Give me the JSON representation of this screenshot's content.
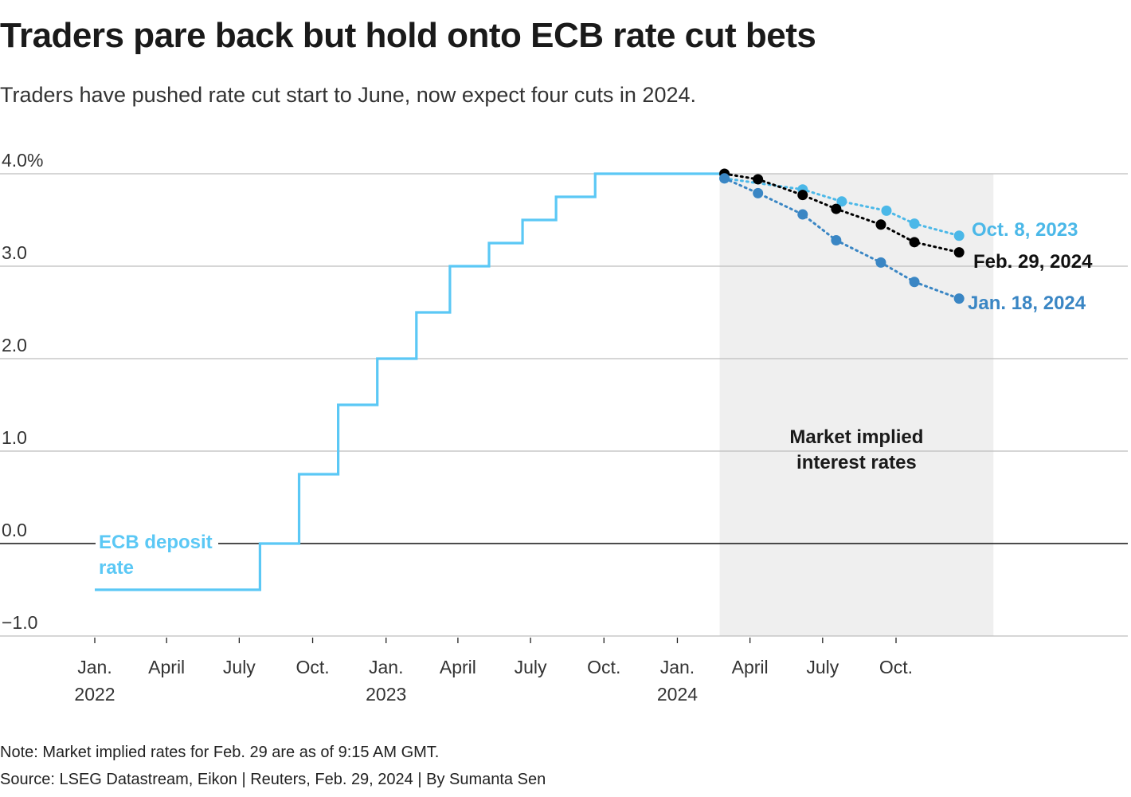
{
  "header": {
    "title": "Traders pare back but hold onto ECB rate cut bets",
    "subtitle": "Traders have pushed rate cut start to June, now expect four cuts in 2024."
  },
  "footer": {
    "note": "Note: Market implied rates for Feb. 29 are as of 9:15 AM GMT.",
    "source": "Source: LSEG Datastream, Eikon | Reuters, Feb. 29, 2024 | By Sumanta Sen"
  },
  "colors": {
    "deposit": "#5bc8f5",
    "oct8": "#4bb8e8",
    "feb29": "#000000",
    "jan18": "#3a86c4",
    "shade": "#efefef",
    "grid": "#bdbdbd",
    "zero": "#111111"
  },
  "chart_data": {
    "type": "line",
    "y_unit": "%",
    "ylim": [
      -1.0,
      4.0
    ],
    "y_ticks": [
      {
        "value": 4.0,
        "label": "4.0%"
      },
      {
        "value": 3.0,
        "label": "3.0"
      },
      {
        "value": 2.0,
        "label": "2.0"
      },
      {
        "value": 1.0,
        "label": "1.0"
      },
      {
        "value": 0.0,
        "label": "0.0"
      },
      {
        "value": -1.0,
        "label": "−1.0"
      }
    ],
    "x_range": [
      "2022-01-01",
      "2024-12-31"
    ],
    "x_ticks": [
      {
        "date": "2022-01-01",
        "label1": "Jan.",
        "label2": "2022"
      },
      {
        "date": "2022-04-01",
        "label1": "April",
        "label2": ""
      },
      {
        "date": "2022-07-01",
        "label1": "July",
        "label2": ""
      },
      {
        "date": "2022-10-01",
        "label1": "Oct.",
        "label2": ""
      },
      {
        "date": "2023-01-01",
        "label1": "Jan.",
        "label2": "2023"
      },
      {
        "date": "2023-04-01",
        "label1": "April",
        "label2": ""
      },
      {
        "date": "2023-07-01",
        "label1": "July",
        "label2": ""
      },
      {
        "date": "2023-10-01",
        "label1": "Oct.",
        "label2": ""
      },
      {
        "date": "2024-01-01",
        "label1": "Jan.",
        "label2": "2024"
      },
      {
        "date": "2024-04-01",
        "label1": "April",
        "label2": ""
      },
      {
        "date": "2024-07-01",
        "label1": "July",
        "label2": ""
      },
      {
        "date": "2024-10-01",
        "label1": "Oct.",
        "label2": ""
      }
    ],
    "shaded_region": {
      "from": "2024-02-29",
      "to": "2025-01-31",
      "label_line1": "Market implied",
      "label_line2": "interest rates"
    },
    "series": [
      {
        "key": "deposit",
        "name_line1": "ECB deposit",
        "name_line2": "rate",
        "style": "step",
        "points": [
          {
            "x": "2022-01-01",
            "y": -0.5
          },
          {
            "x": "2022-07-27",
            "y": 0.0
          },
          {
            "x": "2022-09-14",
            "y": 0.75
          },
          {
            "x": "2022-11-02",
            "y": 1.5
          },
          {
            "x": "2022-12-21",
            "y": 2.0
          },
          {
            "x": "2023-02-08",
            "y": 2.5
          },
          {
            "x": "2023-03-22",
            "y": 3.0
          },
          {
            "x": "2023-05-10",
            "y": 3.25
          },
          {
            "x": "2023-06-21",
            "y": 3.5
          },
          {
            "x": "2023-08-02",
            "y": 3.75
          },
          {
            "x": "2023-09-20",
            "y": 4.0
          },
          {
            "x": "2024-02-29",
            "y": 4.0
          }
        ]
      },
      {
        "key": "oct8",
        "name": "Oct. 8, 2023",
        "style": "dotted",
        "points": [
          {
            "x": "2024-02-29",
            "y": 3.95
          },
          {
            "x": "2024-06-06",
            "y": 3.83
          },
          {
            "x": "2024-07-25",
            "y": 3.7
          },
          {
            "x": "2024-09-19",
            "y": 3.6
          },
          {
            "x": "2024-10-24",
            "y": 3.46
          },
          {
            "x": "2024-12-19",
            "y": 3.33
          }
        ]
      },
      {
        "key": "feb29",
        "name": "Feb. 29, 2024",
        "style": "dotted",
        "points": [
          {
            "x": "2024-02-29",
            "y": 4.0
          },
          {
            "x": "2024-04-11",
            "y": 3.94
          },
          {
            "x": "2024-06-06",
            "y": 3.77
          },
          {
            "x": "2024-07-18",
            "y": 3.62
          },
          {
            "x": "2024-09-12",
            "y": 3.45
          },
          {
            "x": "2024-10-24",
            "y": 3.26
          },
          {
            "x": "2024-12-19",
            "y": 3.15
          }
        ]
      },
      {
        "key": "jan18",
        "name": "Jan. 18, 2024",
        "style": "dotted",
        "points": [
          {
            "x": "2024-02-29",
            "y": 3.95
          },
          {
            "x": "2024-04-11",
            "y": 3.79
          },
          {
            "x": "2024-06-06",
            "y": 3.56
          },
          {
            "x": "2024-07-18",
            "y": 3.28
          },
          {
            "x": "2024-09-12",
            "y": 3.04
          },
          {
            "x": "2024-10-24",
            "y": 2.83
          },
          {
            "x": "2024-12-19",
            "y": 2.65
          }
        ]
      }
    ]
  }
}
